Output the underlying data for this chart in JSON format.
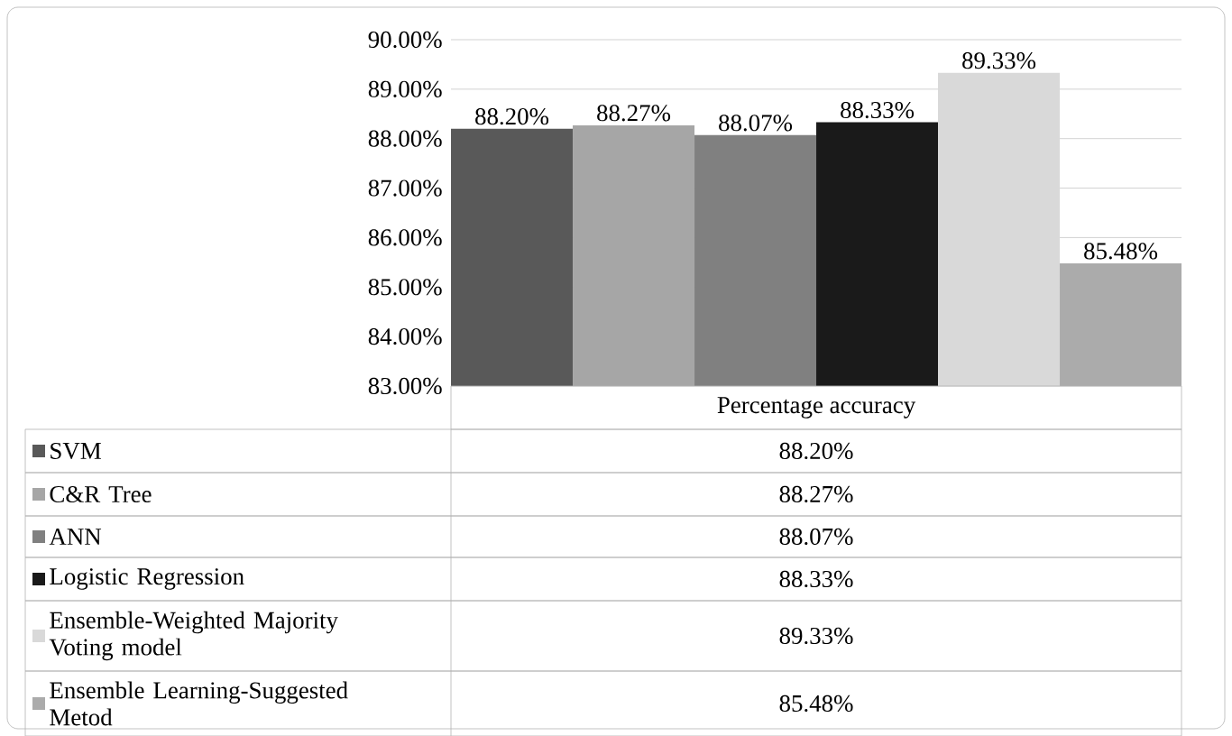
{
  "chart_data": {
    "type": "bar",
    "categories": [
      "Percentage accuracy"
    ],
    "series": [
      {
        "name": "SVM",
        "color": "#595959",
        "values": [
          88.2
        ],
        "value_labels": [
          "88.20%"
        ]
      },
      {
        "name": "C&R Tree",
        "color": "#a6a6a6",
        "values": [
          88.27
        ],
        "value_labels": [
          "88.27%"
        ]
      },
      {
        "name": "ANN",
        "color": "#808080",
        "values": [
          88.07
        ],
        "value_labels": [
          "88.07%"
        ]
      },
      {
        "name": "Logistic Regression",
        "color": "#1a1a1a",
        "values": [
          88.33
        ],
        "value_labels": [
          "88.33%"
        ]
      },
      {
        "name": "Ensemble-Weighted Majority Voting model",
        "color": "#d9d9d9",
        "values": [
          89.33
        ],
        "value_labels": [
          "89.33%"
        ]
      },
      {
        "name": "Ensemble Learning-Suggested Metod",
        "color": "#ababab",
        "values": [
          85.48
        ],
        "value_labels": [
          "85.48%"
        ]
      }
    ],
    "ylim": [
      83,
      90
    ],
    "yticks": [
      {
        "value": 83,
        "label": "83.00%"
      },
      {
        "value": 84,
        "label": "84.00%"
      },
      {
        "value": 85,
        "label": "85.00%"
      },
      {
        "value": 86,
        "label": "86.00%"
      },
      {
        "value": 87,
        "label": "87.00%"
      },
      {
        "value": 88,
        "label": "88.00%"
      },
      {
        "value": 89,
        "label": "89.00%"
      },
      {
        "value": 90,
        "label": "90.00%"
      }
    ],
    "grid": "y",
    "legend": "bottom"
  }
}
